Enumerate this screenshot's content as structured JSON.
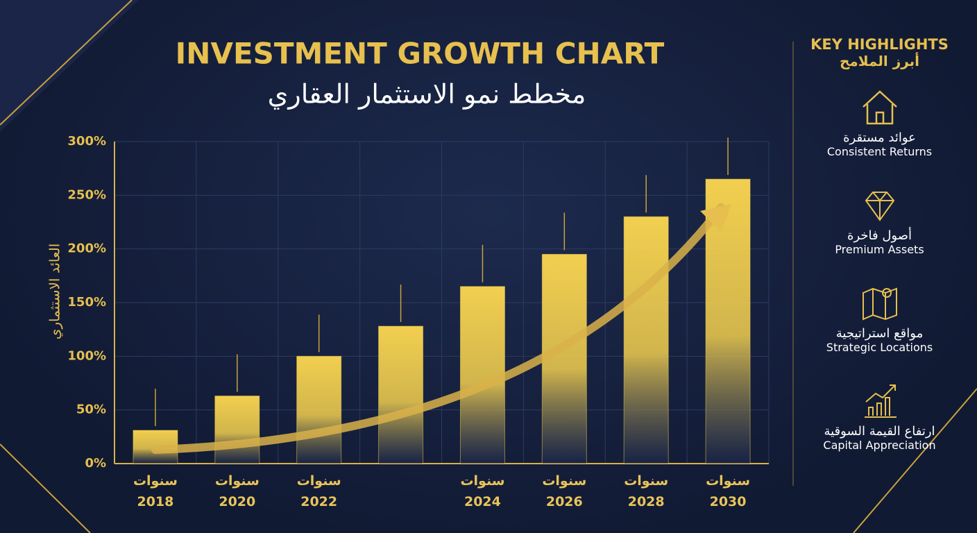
{
  "chart_data": {
    "type": "bar",
    "title": "INVESTMENT GROWTH CHART",
    "subtitle": "مخطط نمو الاستثمار العقاري",
    "y_label": "العائد الاستثماري",
    "categories": [
      "سنوات\n2018",
      "سنوات\n2020",
      "سنوات\n2022",
      null,
      "سنوات\n2024",
      "سنوات\n2026",
      "سنوات\n2028",
      "سنوات\n2030"
    ],
    "values": [
      31,
      63,
      100,
      128,
      165,
      195,
      230,
      265
    ],
    "color": "#f2cf4f",
    "ylim": [
      0,
      300
    ],
    "yticks": [
      {
        "value": 0,
        "label": "0%"
      },
      {
        "value": 50,
        "label": "50%"
      },
      {
        "value": 100,
        "label": "100%"
      },
      {
        "value": 150,
        "label": "150%"
      },
      {
        "value": 200,
        "label": "200%"
      },
      {
        "value": 250,
        "label": "250%"
      },
      {
        "value": 300,
        "label": "300%"
      }
    ],
    "grid": true
  },
  "sidebar": {
    "title": "KEY HIGHLIGHTS",
    "subtitle": "أبرز الملامح",
    "items": [
      {
        "ar": "عوائد مستقرة",
        "en": "Consistent Returns"
      },
      {
        "ar": "أصول فاخرة",
        "en": "Premium Assets"
      },
      {
        "ar": "مواقع استراتيجية",
        "en": "Strategic Locations"
      },
      {
        "ar": "ارتفاع القيمة السوقية",
        "en": "Capital Appreciation"
      }
    ]
  }
}
